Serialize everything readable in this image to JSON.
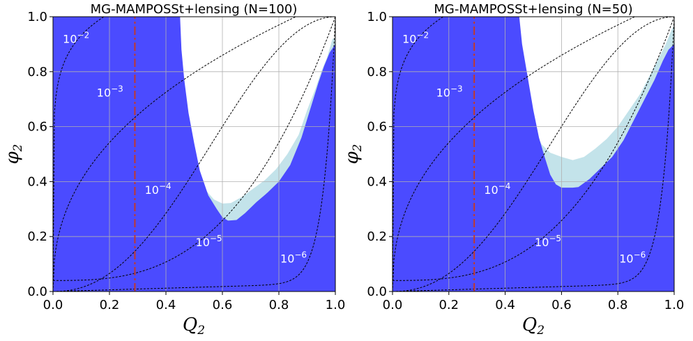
{
  "colors": {
    "excluded_95": "#4b4bff",
    "excluded_68": "#c3e3ea",
    "contour": "#000000",
    "vline": "#c0392b",
    "grid": "#b0b0b0"
  },
  "chart_data": [
    {
      "type": "area",
      "title": "MG-MAMPOSSt+lensing (N=100)",
      "xlabel": "Q",
      "xlabel_sub": "2",
      "ylabel": "φ",
      "ylabel_sub": "2",
      "xlim": [
        0,
        1
      ],
      "ylim": [
        0,
        1
      ],
      "xticks": [
        "0.0",
        "0.2",
        "0.4",
        "0.6",
        "0.8",
        "1.0"
      ],
      "yticks": [
        "0.0",
        "0.2",
        "0.4",
        "0.6",
        "0.8",
        "1.0"
      ],
      "grid": true,
      "vline_x": 0.29,
      "outer_region": [
        [
          0.41,
          1.0
        ],
        [
          0.415,
          0.85
        ],
        [
          0.43,
          0.72
        ],
        [
          0.45,
          0.62
        ],
        [
          0.48,
          0.52
        ],
        [
          0.51,
          0.43
        ],
        [
          0.54,
          0.37
        ],
        [
          0.57,
          0.335
        ],
        [
          0.6,
          0.32
        ],
        [
          0.63,
          0.322
        ],
        [
          0.67,
          0.345
        ],
        [
          0.71,
          0.375
        ],
        [
          0.75,
          0.405
        ],
        [
          0.79,
          0.445
        ],
        [
          0.83,
          0.5
        ],
        [
          0.87,
          0.57
        ],
        [
          0.9,
          0.66
        ],
        [
          0.93,
          0.74
        ],
        [
          0.95,
          0.8
        ],
        [
          0.97,
          0.85
        ],
        [
          0.99,
          0.92
        ]
      ],
      "inner_region": [
        [
          0.45,
          1.0
        ],
        [
          0.455,
          0.88
        ],
        [
          0.465,
          0.77
        ],
        [
          0.48,
          0.65
        ],
        [
          0.5,
          0.54
        ],
        [
          0.52,
          0.44
        ],
        [
          0.55,
          0.35
        ],
        [
          0.58,
          0.3
        ],
        [
          0.6,
          0.27
        ],
        [
          0.62,
          0.258
        ],
        [
          0.65,
          0.26
        ],
        [
          0.68,
          0.285
        ],
        [
          0.72,
          0.325
        ],
        [
          0.76,
          0.36
        ],
        [
          0.8,
          0.4
        ],
        [
          0.84,
          0.46
        ],
        [
          0.88,
          0.56
        ],
        [
          0.91,
          0.66
        ],
        [
          0.94,
          0.76
        ],
        [
          0.96,
          0.82
        ],
        [
          0.98,
          0.87
        ],
        [
          1.0,
          0.9
        ]
      ],
      "contours": [
        {
          "label": "10",
          "exp": "−2",
          "label_x": 0.035,
          "label_y": 0.905
        },
        {
          "label": "10",
          "exp": "−3",
          "label_x": 0.155,
          "label_y": 0.71
        },
        {
          "label": "10",
          "exp": "−4",
          "label_x": 0.325,
          "label_y": 0.355
        },
        {
          "label": "10",
          "exp": "−5",
          "label_x": 0.505,
          "label_y": 0.165
        },
        {
          "label": "10",
          "exp": "−6",
          "label_x": 0.805,
          "label_y": 0.105
        }
      ]
    },
    {
      "type": "area",
      "title": "MG-MAMPOSSt+lensing (N=50)",
      "xlabel": "Q",
      "xlabel_sub": "2",
      "ylabel": "φ",
      "ylabel_sub": "2",
      "xlim": [
        0,
        1
      ],
      "ylim": [
        0,
        1
      ],
      "xticks": [
        "0.0",
        "0.2",
        "0.4",
        "0.6",
        "0.8",
        "1.0"
      ],
      "yticks": [
        "0.0",
        "0.2",
        "0.4",
        "0.6",
        "0.8",
        "1.0"
      ],
      "grid": true,
      "vline_x": 0.29,
      "outer_region": [
        [
          0.41,
          1.0
        ],
        [
          0.42,
          0.9
        ],
        [
          0.44,
          0.8
        ],
        [
          0.46,
          0.72
        ],
        [
          0.48,
          0.65
        ],
        [
          0.5,
          0.59
        ],
        [
          0.53,
          0.535
        ],
        [
          0.56,
          0.505
        ],
        [
          0.6,
          0.49
        ],
        [
          0.64,
          0.478
        ],
        [
          0.68,
          0.49
        ],
        [
          0.72,
          0.52
        ],
        [
          0.76,
          0.555
        ],
        [
          0.8,
          0.6
        ],
        [
          0.84,
          0.66
        ],
        [
          0.88,
          0.72
        ],
        [
          0.91,
          0.78
        ],
        [
          0.94,
          0.84
        ],
        [
          0.97,
          0.9
        ],
        [
          0.99,
          0.95
        ],
        [
          1.0,
          0.97
        ]
      ],
      "inner_region": [
        [
          0.45,
          1.0
        ],
        [
          0.46,
          0.9
        ],
        [
          0.48,
          0.78
        ],
        [
          0.5,
          0.66
        ],
        [
          0.52,
          0.56
        ],
        [
          0.54,
          0.49
        ],
        [
          0.56,
          0.425
        ],
        [
          0.58,
          0.39
        ],
        [
          0.6,
          0.378
        ],
        [
          0.64,
          0.378
        ],
        [
          0.66,
          0.38
        ],
        [
          0.7,
          0.41
        ],
        [
          0.74,
          0.45
        ],
        [
          0.78,
          0.49
        ],
        [
          0.82,
          0.55
        ],
        [
          0.86,
          0.63
        ],
        [
          0.9,
          0.71
        ],
        [
          0.93,
          0.77
        ],
        [
          0.96,
          0.84
        ],
        [
          0.98,
          0.88
        ],
        [
          1.0,
          0.9
        ]
      ],
      "contours": [
        {
          "label": "10",
          "exp": "−2",
          "label_x": 0.035,
          "label_y": 0.905
        },
        {
          "label": "10",
          "exp": "−3",
          "label_x": 0.155,
          "label_y": 0.71
        },
        {
          "label": "10",
          "exp": "−4",
          "label_x": 0.325,
          "label_y": 0.355
        },
        {
          "label": "10",
          "exp": "−5",
          "label_x": 0.505,
          "label_y": 0.165
        },
        {
          "label": "10",
          "exp": "−6",
          "label_x": 0.805,
          "label_y": 0.105
        }
      ]
    }
  ]
}
